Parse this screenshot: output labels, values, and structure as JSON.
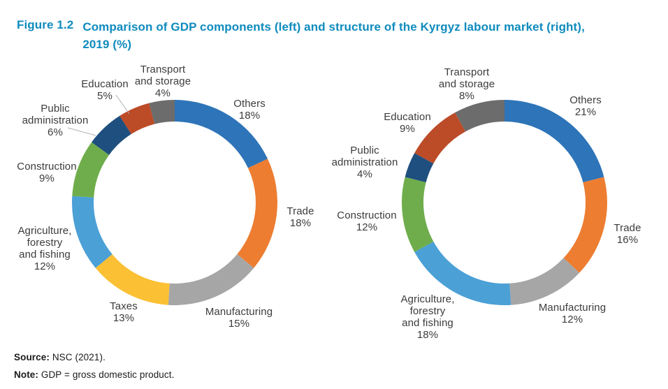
{
  "figure": {
    "label": "Figure 1.2",
    "title_line1": "Comparison of GDP components (left) and structure of the Kyrgyz labour market (right),",
    "title_line2": "2019 (%)",
    "accent_color": "#0E8BBD"
  },
  "footer": {
    "source_label": "Source:",
    "source_text": " NSC (2021).",
    "note_label": "Note:",
    "note_text": " GDP = gross domestic product."
  },
  "chart_data": [
    {
      "type": "pie",
      "subtype": "donut",
      "title": "GDP components",
      "units": "%",
      "start_angle": "top",
      "direction": "clockwise",
      "segments": [
        {
          "name": "Others",
          "label_lines": [
            "Others"
          ],
          "value": 18,
          "pct_label": "18%",
          "color": "#2E74B8"
        },
        {
          "name": "Trade",
          "label_lines": [
            "Trade"
          ],
          "value": 18,
          "pct_label": "18%",
          "color": "#ED7D31"
        },
        {
          "name": "Manufacturing",
          "label_lines": [
            "Manufacturing"
          ],
          "value": 15,
          "pct_label": "15%",
          "color": "#A6A6A6"
        },
        {
          "name": "Taxes",
          "label_lines": [
            "Taxes"
          ],
          "value": 13,
          "pct_label": "13%",
          "color": "#FBC034"
        },
        {
          "name": "Agriculture, forestry and fishing",
          "label_lines": [
            "Agriculture,",
            "forestry",
            "and fishing"
          ],
          "value": 12,
          "pct_label": "12%",
          "color": "#4BA0D6"
        },
        {
          "name": "Construction",
          "label_lines": [
            "Construction"
          ],
          "value": 9,
          "pct_label": "9%",
          "color": "#6FAD4C"
        },
        {
          "name": "Public administration",
          "label_lines": [
            "Public",
            "administration"
          ],
          "value": 6,
          "pct_label": "6%",
          "color": "#1E4F7F"
        },
        {
          "name": "Education",
          "label_lines": [
            "Education"
          ],
          "value": 5,
          "pct_label": "5%",
          "color": "#BC4B27"
        },
        {
          "name": "Transport and storage",
          "label_lines": [
            "Transport",
            "and storage"
          ],
          "value": 4,
          "pct_label": "4%",
          "color": "#6C6C6C"
        }
      ]
    },
    {
      "type": "pie",
      "subtype": "donut",
      "title": "Structure of the Kyrgyz labour market",
      "units": "%",
      "start_angle": "top",
      "direction": "clockwise",
      "segments": [
        {
          "name": "Others",
          "label_lines": [
            "Others"
          ],
          "value": 21,
          "pct_label": "21%",
          "color": "#2E74B8"
        },
        {
          "name": "Trade",
          "label_lines": [
            "Trade"
          ],
          "value": 16,
          "pct_label": "16%",
          "color": "#ED7D31"
        },
        {
          "name": "Manufacturing",
          "label_lines": [
            "Manufacturing"
          ],
          "value": 12,
          "pct_label": "12%",
          "color": "#A6A6A6"
        },
        {
          "name": "Agriculture, forestry and fishing",
          "label_lines": [
            "Agriculture,",
            "forestry",
            "and fishing"
          ],
          "value": 18,
          "pct_label": "18%",
          "color": "#4BA0D6"
        },
        {
          "name": "Construction",
          "label_lines": [
            "Construction"
          ],
          "value": 12,
          "pct_label": "12%",
          "color": "#6FAD4C"
        },
        {
          "name": "Public administration",
          "label_lines": [
            "Public",
            "administration"
          ],
          "value": 4,
          "pct_label": "4%",
          "color": "#1E4F7F"
        },
        {
          "name": "Education",
          "label_lines": [
            "Education"
          ],
          "value": 9,
          "pct_label": "9%",
          "color": "#BC4B27"
        },
        {
          "name": "Transport and storage",
          "label_lines": [
            "Transport",
            "and storage"
          ],
          "value": 8,
          "pct_label": "8%",
          "color": "#6C6C6C"
        }
      ]
    }
  ]
}
